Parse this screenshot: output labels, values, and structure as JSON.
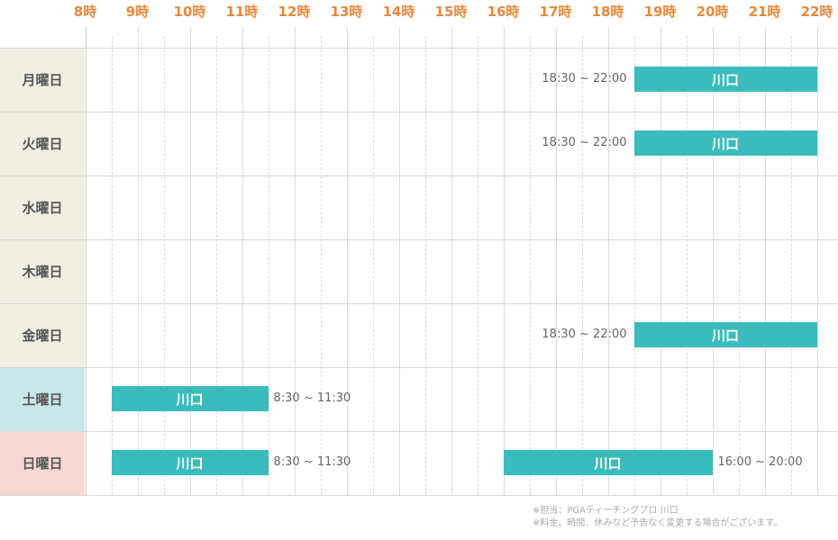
{
  "hours": [
    "8時",
    "9時",
    "10時",
    "11時",
    "12時",
    "13時",
    "14時",
    "15時",
    "16時",
    "17時",
    "18時",
    "19時",
    "20時",
    "21時",
    "22時"
  ],
  "days": [
    {
      "label": "月曜日",
      "bg": "#f1efe4",
      "sessions": [
        {
          "start": 18.5,
          "end": 22,
          "name": "川口",
          "time": "18:30 ~ 22:00",
          "time_side": "left"
        }
      ]
    },
    {
      "label": "火曜日",
      "bg": "#f1efe4",
      "sessions": [
        {
          "start": 18.5,
          "end": 22,
          "name": "川口",
          "time": "18:30 ~ 22:00",
          "time_side": "left"
        }
      ]
    },
    {
      "label": "水曜日",
      "bg": "#f1efe4",
      "sessions": []
    },
    {
      "label": "木曜日",
      "bg": "#f1efe4",
      "sessions": []
    },
    {
      "label": "金曜日",
      "bg": "#f1efe4",
      "sessions": [
        {
          "start": 18.5,
          "end": 22,
          "name": "川口",
          "time": "18:30 ~ 22:00",
          "time_side": "left"
        }
      ]
    },
    {
      "label": "土曜日",
      "bg": "#c6e6e8",
      "sessions": [
        {
          "start": 8.5,
          "end": 11.5,
          "name": "川口",
          "time": "8:30 ~ 11:30",
          "time_side": "right"
        }
      ]
    },
    {
      "label": "日曜日",
      "bg": "#f8d8d4",
      "sessions": [
        {
          "start": 8.5,
          "end": 11.5,
          "name": "川口",
          "time": "8:30 ~ 11:30",
          "time_side": "right"
        },
        {
          "start": 16,
          "end": 20,
          "name": "川口",
          "time": "16:00 ~ 20:00",
          "time_side": "right"
        }
      ]
    }
  ],
  "notes": {
    "line1": "※担当：PGAティーチングプロ 川口",
    "line2": "※料金、時間、休みなど予告なく変更する場合がございます。"
  },
  "colors": {
    "hour_text": "#e8883a",
    "bar": "#3bbcbc",
    "weekday_bg": "#f1efe4",
    "saturday_bg": "#c6e6e8",
    "sunday_bg": "#f8d8d4"
  }
}
